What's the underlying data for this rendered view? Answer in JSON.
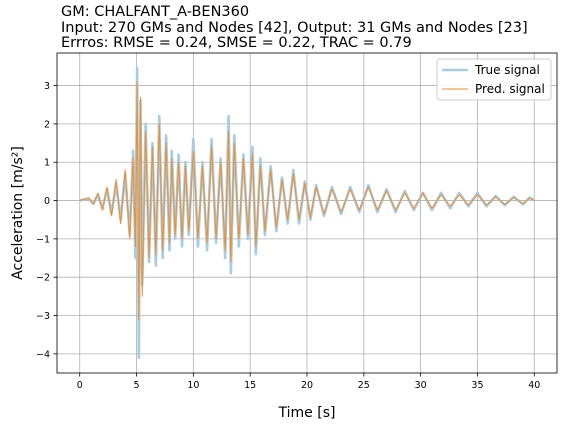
{
  "chart_data": {
    "type": "line",
    "title_lines": [
      "GM: CHALFANT_A-BEN360",
      "Input: 270 GMs and Nodes [42], Output: 31 GMs and Nodes [23]",
      "Errros: RMSE = 0.24, SMSE = 0.22, TRAC = 0.79"
    ],
    "xlabel": "Time [s]",
    "ylabel": "Acceleration [m/s²]",
    "xlim": [
      -2,
      42
    ],
    "ylim": [
      -4.5,
      3.85
    ],
    "xticks": [
      0,
      5,
      10,
      15,
      20,
      25,
      30,
      35,
      40
    ],
    "yticks": [
      -4,
      -3,
      -2,
      -1,
      0,
      1,
      2,
      3
    ],
    "grid": true,
    "legend_position": "upper-right",
    "series": [
      {
        "name": "True signal",
        "color": "#a6cde3",
        "x": [
          0,
          0.8,
          1.2,
          1.6,
          2.0,
          2.4,
          2.8,
          3.2,
          3.6,
          4.0,
          4.4,
          4.7,
          4.9,
          5.05,
          5.2,
          5.35,
          5.5,
          5.8,
          6.1,
          6.4,
          6.7,
          7.0,
          7.3,
          7.6,
          7.9,
          8.1,
          8.4,
          8.7,
          9.0,
          9.3,
          9.6,
          10.0,
          10.4,
          10.8,
          11.2,
          11.6,
          12.0,
          12.4,
          12.8,
          13.1,
          13.3,
          13.6,
          14.0,
          14.4,
          14.8,
          15.2,
          15.5,
          15.9,
          16.3,
          16.8,
          17.3,
          17.8,
          18.3,
          18.8,
          19.3,
          19.8,
          20.3,
          20.8,
          21.5,
          22.2,
          23.0,
          23.8,
          24.6,
          25.4,
          26.2,
          27.0,
          27.8,
          28.6,
          29.4,
          30.2,
          31.0,
          31.8,
          32.6,
          33.4,
          34.2,
          35.0,
          35.8,
          36.6,
          37.4,
          38.2,
          39.0,
          39.6,
          40.0
        ],
        "y": [
          0,
          0.05,
          -0.08,
          0.15,
          -0.22,
          0.3,
          -0.35,
          0.45,
          -0.5,
          0.7,
          -0.9,
          1.3,
          -1.5,
          3.45,
          -4.1,
          2.6,
          -2.2,
          2.0,
          -1.6,
          1.5,
          -1.7,
          2.2,
          -1.5,
          1.7,
          -1.3,
          1.3,
          -1.0,
          1.2,
          -1.2,
          1.0,
          -0.9,
          1.6,
          -1.2,
          1.0,
          -1.3,
          1.6,
          -1.1,
          1.1,
          -1.5,
          2.2,
          -1.9,
          1.7,
          -1.2,
          1.2,
          -1.0,
          1.4,
          -1.4,
          1.1,
          -0.9,
          0.9,
          -0.8,
          0.6,
          -0.6,
          0.8,
          -0.6,
          0.5,
          -0.5,
          0.4,
          -0.4,
          0.35,
          -0.35,
          0.35,
          -0.3,
          0.4,
          -0.3,
          0.3,
          -0.3,
          0.25,
          -0.25,
          0.2,
          -0.25,
          0.2,
          -0.2,
          0.2,
          -0.15,
          0.2,
          -0.15,
          0.12,
          -0.12,
          0.1,
          -0.1,
          0.08,
          0
        ]
      },
      {
        "name": "Pred. signal",
        "color": "#f28e2b",
        "x": [
          0,
          0.8,
          1.2,
          1.6,
          2.0,
          2.4,
          2.8,
          3.2,
          3.6,
          4.0,
          4.4,
          4.7,
          4.9,
          5.05,
          5.2,
          5.35,
          5.5,
          5.8,
          6.1,
          6.4,
          6.7,
          7.0,
          7.3,
          7.6,
          7.9,
          8.1,
          8.4,
          8.7,
          9.0,
          9.3,
          9.6,
          10.0,
          10.4,
          10.8,
          11.2,
          11.6,
          12.0,
          12.4,
          12.8,
          13.1,
          13.3,
          13.6,
          14.0,
          14.4,
          14.8,
          15.2,
          15.5,
          15.9,
          16.3,
          16.8,
          17.3,
          17.8,
          18.3,
          18.8,
          19.3,
          19.8,
          20.3,
          20.8,
          21.5,
          22.2,
          23.0,
          23.8,
          24.6,
          25.4,
          26.2,
          27.0,
          27.8,
          28.6,
          29.4,
          30.2,
          31.0,
          31.8,
          32.6,
          33.4,
          34.2,
          35.0,
          35.8,
          36.6,
          37.4,
          38.2,
          39.0,
          39.6,
          40.0
        ],
        "y": [
          0,
          0.07,
          -0.1,
          0.2,
          -0.25,
          0.35,
          -0.4,
          0.55,
          -0.6,
          0.8,
          -1.0,
          1.1,
          -1.2,
          3.1,
          -3.1,
          2.7,
          -2.5,
          1.8,
          -1.5,
          1.4,
          -1.4,
          2.0,
          -1.3,
          1.5,
          -1.1,
          1.1,
          -0.9,
          1.0,
          -1.0,
          0.9,
          -0.8,
          1.3,
          -1.0,
          0.9,
          -1.1,
          1.4,
          -1.0,
          1.0,
          -1.3,
          1.8,
          -1.6,
          1.5,
          -1.0,
          1.1,
          -0.9,
          1.2,
          -1.2,
          0.9,
          -0.8,
          0.8,
          -0.7,
          0.55,
          -0.5,
          0.7,
          -0.5,
          0.45,
          -0.45,
          0.35,
          -0.35,
          0.3,
          -0.3,
          0.3,
          -0.25,
          0.35,
          -0.25,
          0.25,
          -0.25,
          0.2,
          -0.2,
          0.2,
          -0.2,
          0.15,
          -0.15,
          0.15,
          -0.12,
          0.15,
          -0.12,
          0.1,
          -0.1,
          0.08,
          -0.08,
          0.06,
          0
        ]
      }
    ]
  }
}
